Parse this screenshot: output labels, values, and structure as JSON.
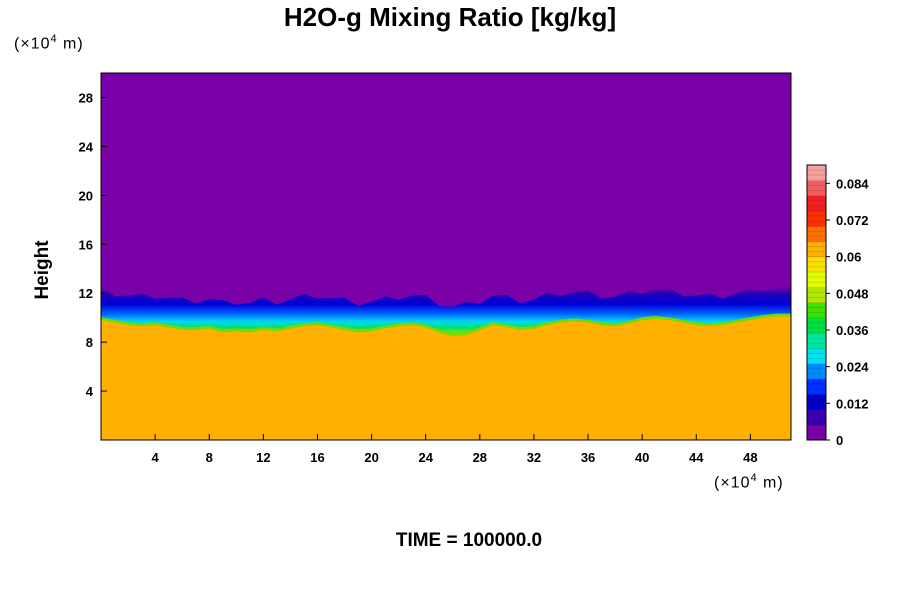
{
  "chart_data": {
    "type": "heatmap",
    "title": "H2O-g Mixing Ratio [kg/kg]",
    "ylabel": "Height",
    "xlabel": "",
    "x_unit": {
      "prefix": "(×10",
      "exp": "4",
      "suffix": " m)"
    },
    "y_unit": {
      "prefix": "(×10",
      "exp": "4",
      "suffix": " m)"
    },
    "xlim": [
      0,
      51
    ],
    "ylim": [
      0,
      30
    ],
    "xticks": [
      4,
      8,
      12,
      16,
      20,
      24,
      28,
      32,
      36,
      40,
      44,
      48
    ],
    "yticks": [
      4,
      8,
      12,
      16,
      20,
      24,
      28
    ],
    "colorbar": {
      "ticks": [
        0,
        0.012,
        0.024,
        0.036,
        0.048,
        0.06,
        0.072,
        0.084
      ],
      "tick_labels": [
        "0",
        "0.012",
        "0.024",
        "0.036",
        "0.048",
        "0.06",
        "0.072",
        "0.084"
      ],
      "range": [
        0,
        0.09
      ],
      "colors": [
        "#7a00a8",
        "#3a00b0",
        "#0000c8",
        "#0030ff",
        "#0088ff",
        "#00e0f0",
        "#00e8a0",
        "#00e040",
        "#40e000",
        "#b0e800",
        "#e0ff00",
        "#f8e000",
        "#ffb000",
        "#ff7000",
        "#ff3000",
        "#f02020",
        "#f06060",
        "#f8a0a0"
      ]
    },
    "fields": {
      "upper_value": 0.0,
      "lower_value": 0.06,
      "interface_height": [
        10.0,
        9.8,
        9.6,
        9.5,
        9.6,
        9.4,
        9.2,
        9.2,
        9.3,
        9.0,
        9.1,
        9.0,
        9.2,
        9.1,
        9.3,
        9.5,
        9.6,
        9.4,
        9.2,
        9.0,
        9.1,
        9.3,
        9.5,
        9.6,
        9.4,
        9.0,
        8.7,
        8.8,
        9.2,
        9.6,
        9.4,
        9.2,
        9.3,
        9.6,
        9.8,
        9.9,
        9.8,
        9.6,
        9.5,
        9.7,
        10.0,
        10.1,
        10.0,
        9.8,
        9.6,
        9.5,
        9.6,
        9.8,
        10.0,
        10.2,
        10.3,
        10.3
      ],
      "interface_x": [
        0,
        1,
        2,
        3,
        4,
        5,
        6,
        7,
        8,
        9,
        10,
        11,
        12,
        13,
        14,
        15,
        16,
        17,
        18,
        19,
        20,
        21,
        22,
        23,
        24,
        25,
        26,
        27,
        28,
        29,
        30,
        31,
        32,
        33,
        34,
        35,
        36,
        37,
        38,
        39,
        40,
        41,
        42,
        43,
        44,
        45,
        46,
        47,
        48,
        49,
        50,
        51
      ]
    },
    "legend": "colorbar at right"
  },
  "footer": {
    "time_label": "TIME = 100000.0"
  }
}
